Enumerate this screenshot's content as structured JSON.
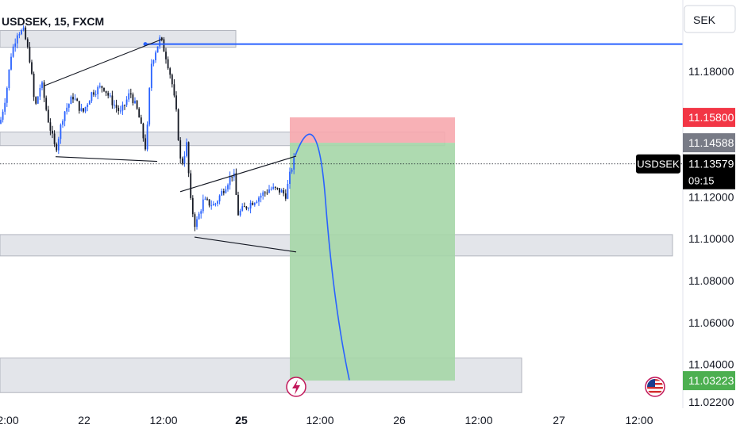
{
  "chart_data": {
    "type": "candlestick",
    "title": "USDSEK, 15, FXCM",
    "currency": "SEK",
    "symbol_tag": "USDSEK",
    "countdown": "09:15",
    "y_axis": {
      "min": 11.015,
      "max": 11.205,
      "ticks": [
        "11.18000",
        "11.12000",
        "11.10000",
        "11.08000",
        "11.06000",
        "11.04000",
        "11.02200"
      ],
      "tick_values": [
        11.18,
        11.12,
        11.1,
        11.08,
        11.06,
        11.04,
        11.022
      ]
    },
    "x_axis": {
      "ticks": [
        {
          "label": "2:00",
          "bold": false
        },
        {
          "label": "22",
          "bold": false
        },
        {
          "label": "12:00",
          "bold": false
        },
        {
          "label": "25",
          "bold": true
        },
        {
          "label": "12:00",
          "bold": false
        },
        {
          "label": "26",
          "bold": false
        },
        {
          "label": "12:00",
          "bold": false
        },
        {
          "label": "27",
          "bold": false
        },
        {
          "label": "12:00",
          "bold": false
        }
      ]
    },
    "price_labels": {
      "stop": {
        "value": "11.15800",
        "color": "#f23645"
      },
      "entry": {
        "value": "11.14588",
        "color": "#787b86"
      },
      "current": {
        "value": "11.13579",
        "color": "#000000"
      },
      "target": {
        "value": "11.03223",
        "color": "#4caf50"
      }
    },
    "resistance_line_value": 11.193,
    "position": {
      "direction": "short",
      "entry": 11.14588,
      "stop": 11.158,
      "target": 11.03223,
      "profit_color": "#a5d6a7",
      "loss_color": "#f7a8ae"
    },
    "zones": [
      {
        "from": 11.1915,
        "to": 11.1995
      },
      {
        "from": 11.1445,
        "to": 11.151
      },
      {
        "from": 11.0918,
        "to": 11.102
      },
      {
        "from": 11.0265,
        "to": 11.043
      }
    ],
    "colors": {
      "up": "#2962ff",
      "down": "#131722",
      "line": "#2962ff"
    }
  }
}
